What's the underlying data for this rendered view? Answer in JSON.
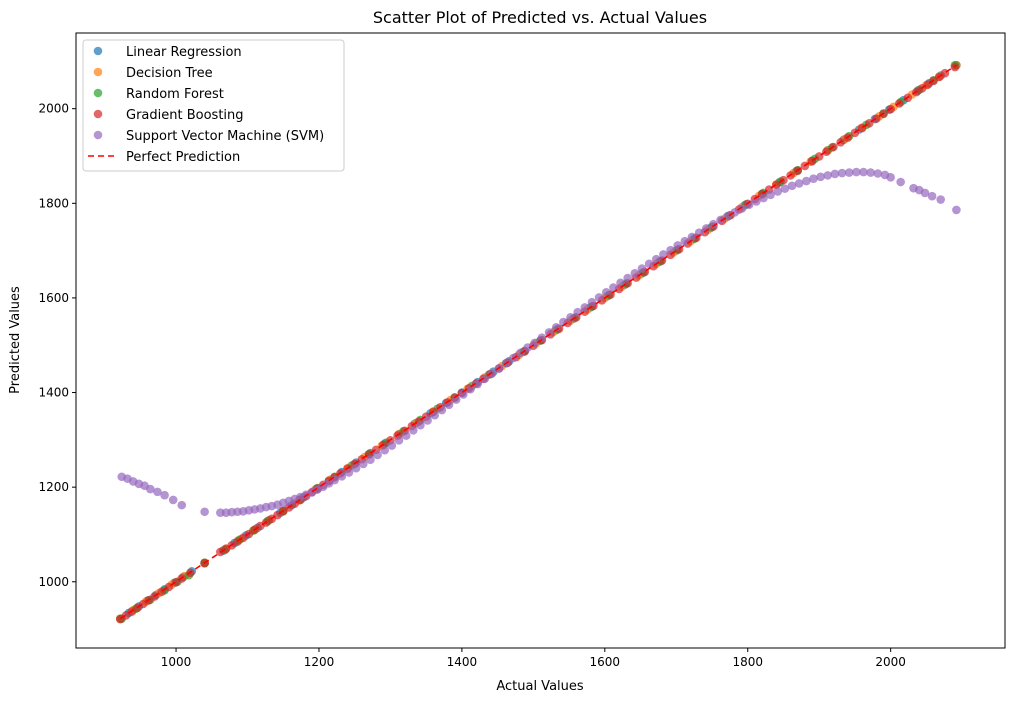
{
  "chart_data": {
    "type": "scatter",
    "title": "Scatter Plot of Predicted vs. Actual Values",
    "xlabel": "Actual Values",
    "ylabel": "Predicted Values",
    "xlim": [
      860,
      2160
    ],
    "ylim": [
      860,
      2160
    ],
    "xticks": [
      1000,
      1200,
      1400,
      1600,
      1800,
      2000
    ],
    "yticks": [
      1000,
      1200,
      1400,
      1600,
      1800,
      2000
    ],
    "grid": false,
    "legend_position": "upper-left",
    "series": [
      {
        "name": "Linear Regression",
        "color": "#1f77b4",
        "x": [
          922,
          934,
          948,
          960,
          972,
          984,
          998,
          1010,
          1022,
          1040,
          1066,
          1082,
          1098,
          1114,
          1130,
          1146,
          1162,
          1178,
          1196,
          1214,
          1232,
          1252,
          1272,
          1292,
          1312,
          1334,
          1356,
          1378,
          1400,
          1422,
          1444,
          1466,
          1488,
          1510,
          1532,
          1556,
          1580,
          1604,
          1628,
          1652,
          1676,
          1700,
          1724,
          1748,
          1772,
          1796,
          1820,
          1844,
          1868,
          1890,
          1912,
          1934,
          1956,
          1978,
          1998,
          2018,
          2038,
          2054,
          2070,
          2092
        ],
        "y": [
          922,
          934,
          948,
          960,
          972,
          984,
          998,
          1010,
          1022,
          1040,
          1066,
          1082,
          1098,
          1114,
          1130,
          1146,
          1162,
          1178,
          1196,
          1214,
          1232,
          1252,
          1272,
          1292,
          1312,
          1334,
          1356,
          1378,
          1400,
          1422,
          1444,
          1466,
          1488,
          1510,
          1532,
          1556,
          1580,
          1604,
          1628,
          1652,
          1676,
          1700,
          1724,
          1748,
          1772,
          1796,
          1820,
          1844,
          1868,
          1890,
          1912,
          1934,
          1956,
          1978,
          1998,
          2018,
          2038,
          2054,
          2070,
          2092
        ]
      },
      {
        "name": "Decision Tree",
        "color": "#ff7f0e",
        "x": [
          922,
          940,
          958,
          976,
          994,
          1012,
          1040,
          1070,
          1090,
          1110,
          1130,
          1150,
          1172,
          1194,
          1216,
          1240,
          1264,
          1288,
          1312,
          1336,
          1360,
          1384,
          1408,
          1432,
          1456,
          1480,
          1504,
          1528,
          1552,
          1576,
          1600,
          1624,
          1648,
          1672,
          1696,
          1720,
          1744,
          1768,
          1792,
          1816,
          1840,
          1864,
          1888,
          1912,
          1936,
          1960,
          1984,
          2004,
          2030,
          2050,
          2068,
          2092
        ],
        "y": [
          922,
          940,
          958,
          976,
          994,
          1012,
          1040,
          1070,
          1090,
          1110,
          1130,
          1150,
          1172,
          1194,
          1216,
          1240,
          1264,
          1288,
          1312,
          1336,
          1360,
          1384,
          1408,
          1432,
          1456,
          1480,
          1504,
          1528,
          1552,
          1576,
          1600,
          1624,
          1648,
          1672,
          1696,
          1720,
          1744,
          1768,
          1792,
          1816,
          1840,
          1864,
          1888,
          1912,
          1936,
          1960,
          1984,
          2004,
          2030,
          2050,
          2068,
          2092
        ]
      },
      {
        "name": "Random Forest",
        "color": "#2ca02c",
        "x": [
          924,
          944,
          964,
          984,
          1002,
          1018,
          1040,
          1068,
          1088,
          1108,
          1128,
          1150,
          1174,
          1198,
          1222,
          1246,
          1270,
          1294,
          1318,
          1342,
          1366,
          1390,
          1414,
          1438,
          1462,
          1486,
          1510,
          1534,
          1558,
          1582,
          1606,
          1630,
          1654,
          1678,
          1702,
          1726,
          1750,
          1774,
          1798,
          1822,
          1846,
          1870,
          1894,
          1918,
          1942,
          1966,
          1990,
          2014,
          2040,
          2060,
          2090
        ],
        "y": [
          922,
          943,
          962,
          982,
          1000,
          1014,
          1040,
          1067,
          1088,
          1108,
          1128,
          1150,
          1174,
          1198,
          1222,
          1246,
          1270,
          1294,
          1318,
          1342,
          1366,
          1390,
          1414,
          1438,
          1462,
          1486,
          1510,
          1534,
          1558,
          1582,
          1606,
          1630,
          1654,
          1678,
          1702,
          1726,
          1750,
          1774,
          1798,
          1822,
          1846,
          1870,
          1894,
          1918,
          1942,
          1966,
          1990,
          2014,
          2040,
          2060,
          2092
        ]
      },
      {
        "name": "Gradient Boosting",
        "color": "#d62728",
        "x": [
          922,
          930,
          938,
          946,
          954,
          962,
          970,
          980,
          990,
          1000,
          1008,
          1020,
          1040,
          1062,
          1070,
          1078,
          1086,
          1094,
          1102,
          1110,
          1118,
          1126,
          1134,
          1142,
          1150,
          1158,
          1166,
          1174,
          1182,
          1190,
          1198,
          1206,
          1214,
          1222,
          1230,
          1240,
          1250,
          1260,
          1270,
          1280,
          1290,
          1300,
          1310,
          1320,
          1330,
          1340,
          1350,
          1360,
          1370,
          1380,
          1390,
          1400,
          1410,
          1420,
          1430,
          1440,
          1452,
          1464,
          1476,
          1488,
          1500,
          1512,
          1524,
          1536,
          1548,
          1560,
          1572,
          1584,
          1596,
          1608,
          1620,
          1632,
          1644,
          1656,
          1668,
          1680,
          1692,
          1704,
          1716,
          1728,
          1740,
          1752,
          1764,
          1776,
          1788,
          1800,
          1810,
          1820,
          1830,
          1840,
          1850,
          1860,
          1870,
          1880,
          1890,
          1900,
          1910,
          1920,
          1930,
          1940,
          1950,
          1960,
          1970,
          1980,
          1990,
          2000,
          2012,
          2024,
          2036,
          2044,
          2052,
          2060,
          2068,
          2076,
          2090
        ],
        "y": [
          921,
          929,
          937,
          945,
          953,
          961,
          969,
          979,
          989,
          999,
          1007,
          1019,
          1039,
          1063,
          1070,
          1077,
          1085,
          1093,
          1101,
          1110,
          1118,
          1125,
          1133,
          1141,
          1149,
          1157,
          1165,
          1173,
          1181,
          1189,
          1197,
          1205,
          1213,
          1221,
          1229,
          1239,
          1249,
          1259,
          1269,
          1279,
          1289,
          1299,
          1309,
          1319,
          1329,
          1339,
          1349,
          1359,
          1369,
          1379,
          1389,
          1399,
          1409,
          1419,
          1429,
          1439,
          1451,
          1463,
          1475,
          1487,
          1499,
          1511,
          1523,
          1535,
          1547,
          1559,
          1571,
          1583,
          1595,
          1607,
          1619,
          1631,
          1643,
          1655,
          1667,
          1679,
          1691,
          1703,
          1715,
          1727,
          1739,
          1751,
          1763,
          1775,
          1787,
          1799,
          1809,
          1819,
          1829,
          1839,
          1849,
          1859,
          1869,
          1879,
          1889,
          1899,
          1909,
          1919,
          1929,
          1939,
          1949,
          1959,
          1969,
          1979,
          1989,
          1999,
          2011,
          2023,
          2035,
          2043,
          2051,
          2059,
          2067,
          2075,
          2088
        ]
      },
      {
        "name": "Support Vector Machine (SVM)",
        "color": "#9467bd",
        "x": [
          924,
          932,
          940,
          948,
          956,
          964,
          974,
          984,
          996,
          1008,
          1040,
          1062,
          1070,
          1078,
          1086,
          1094,
          1102,
          1110,
          1118,
          1126,
          1134,
          1142,
          1150,
          1158,
          1166,
          1174,
          1182,
          1190,
          1198,
          1206,
          1214,
          1222,
          1232,
          1242,
          1252,
          1262,
          1272,
          1282,
          1292,
          1302,
          1312,
          1322,
          1332,
          1342,
          1352,
          1362,
          1372,
          1382,
          1392,
          1402,
          1412,
          1422,
          1432,
          1442,
          1452,
          1462,
          1472,
          1482,
          1492,
          1502,
          1512,
          1522,
          1532,
          1542,
          1552,
          1562,
          1572,
          1582,
          1592,
          1602,
          1612,
          1622,
          1632,
          1642,
          1652,
          1662,
          1672,
          1682,
          1692,
          1702,
          1712,
          1722,
          1732,
          1742,
          1752,
          1762,
          1772,
          1782,
          1792,
          1802,
          1812,
          1822,
          1832,
          1842,
          1852,
          1862,
          1872,
          1882,
          1892,
          1902,
          1912,
          1922,
          1932,
          1942,
          1952,
          1962,
          1972,
          1982,
          1992,
          2000,
          2014,
          2032,
          2040,
          2048,
          2058,
          2070,
          2092
        ],
        "y": [
          1222,
          1218,
          1212,
          1207,
          1203,
          1196,
          1190,
          1183,
          1173,
          1162,
          1148,
          1146,
          1146,
          1147,
          1148,
          1149,
          1151,
          1153,
          1155,
          1158,
          1160,
          1163,
          1167,
          1171,
          1175,
          1179,
          1184,
          1189,
          1195,
          1201,
          1208,
          1215,
          1223,
          1231,
          1240,
          1249,
          1258,
          1268,
          1278,
          1288,
          1299,
          1309,
          1320,
          1331,
          1341,
          1352,
          1363,
          1374,
          1385,
          1396,
          1407,
          1418,
          1429,
          1440,
          1451,
          1462,
          1473,
          1484,
          1495,
          1505,
          1516,
          1527,
          1538,
          1549,
          1559,
          1570,
          1580,
          1591,
          1601,
          1612,
          1622,
          1632,
          1642,
          1652,
          1662,
          1672,
          1682,
          1692,
          1701,
          1711,
          1720,
          1729,
          1738,
          1747,
          1756,
          1765,
          1773,
          1781,
          1789,
          1797,
          1804,
          1811,
          1818,
          1825,
          1831,
          1837,
          1842,
          1847,
          1852,
          1856,
          1859,
          1862,
          1864,
          1865,
          1866,
          1866,
          1865,
          1863,
          1860,
          1855,
          1845,
          1832,
          1828,
          1822,
          1815,
          1808,
          1786
        ]
      }
    ],
    "reference_line": {
      "name": "Perfect Prediction",
      "color": "#ff0000",
      "style": "dashed",
      "x": [
        922,
        2092
      ],
      "y": [
        922,
        2092
      ]
    }
  }
}
